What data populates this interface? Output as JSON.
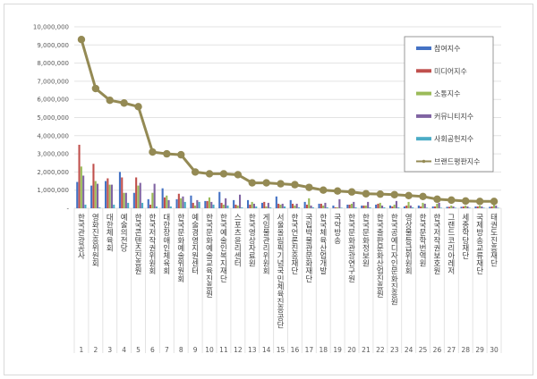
{
  "chart_data": {
    "type": "bar",
    "title": "",
    "xlabel": "",
    "ylabel": "",
    "ylim": [
      0,
      10000000
    ],
    "yticks": [
      "-",
      "1,000,000",
      "2,000,000",
      "3,000,000",
      "4,000,000",
      "5,000,000",
      "6,000,000",
      "7,000,000",
      "8,000,000",
      "9,000,000",
      "10,000,000"
    ],
    "grid": true,
    "legend_position": "top-right",
    "ranks": [
      "1",
      "2",
      "3",
      "4",
      "5",
      "6",
      "7",
      "8",
      "9",
      "10",
      "11",
      "12",
      "13",
      "14",
      "15",
      "16",
      "17",
      "18",
      "19",
      "20",
      "21",
      "22",
      "23",
      "24",
      "25",
      "26",
      "27",
      "28",
      "29",
      "30"
    ],
    "categories": [
      "한국관광공사",
      "영화진흥위원회",
      "대한체육회",
      "예술의전당",
      "한국콘텐츠진흥원",
      "한국저작권위원회",
      "대한장애인체육회",
      "한국문화예술위원회",
      "예술경영지원센터",
      "한국문화예술교육진흥원",
      "한국예술인복지재단",
      "스포츠윤리센터",
      "한국영상자료원",
      "게임물관리위원회",
      "서울올림픽기념국민체육진흥공단",
      "한국언론진흥재단",
      "국립박물관문화재단",
      "한국체육산업개발",
      "국악방송",
      "한국문화관광연구원",
      "한국문화정보원",
      "한국출판문화산업진흥원",
      "한국공예디자인문화진흥원",
      "영상물등급위원회",
      "한국문학번역원",
      "한국저작권보호원",
      "그랜드코리아레저",
      "세종학당재단",
      "국제방송교류재단",
      "태권도진흥재단"
    ],
    "series": [
      {
        "name": "참여지수",
        "type": "bar",
        "color": "#4472c4",
        "values": [
          1450000,
          1250000,
          1500000,
          2000000,
          850000,
          500000,
          1100000,
          500000,
          700000,
          400000,
          900000,
          450000,
          450000,
          300000,
          650000,
          450000,
          350000,
          250000,
          150000,
          200000,
          150000,
          200000,
          150000,
          100000,
          150000,
          100000,
          80000,
          80000,
          100000,
          80000
        ]
      },
      {
        "name": "미디어지수",
        "type": "bar",
        "color": "#c0504d",
        "values": [
          3500000,
          2450000,
          1650000,
          1700000,
          1700000,
          200000,
          600000,
          800000,
          300000,
          400000,
          300000,
          200000,
          200000,
          350000,
          250000,
          250000,
          200000,
          250000,
          50000,
          200000,
          150000,
          250000,
          100000,
          150000,
          100000,
          100000,
          80000,
          100000,
          100000,
          100000
        ]
      },
      {
        "name": "소통지수",
        "type": "bar",
        "color": "#9bbb59",
        "values": [
          2300000,
          1500000,
          1300000,
          850000,
          1250000,
          850000,
          700000,
          550000,
          150000,
          600000,
          200000,
          150000,
          350000,
          100000,
          200000,
          150000,
          550000,
          150000,
          50000,
          250000,
          150000,
          300000,
          200000,
          350000,
          300000,
          250000,
          150000,
          150000,
          150000,
          200000
        ]
      },
      {
        "name": "커뮤니티지수",
        "type": "bar",
        "color": "#8064a2",
        "values": [
          1800000,
          1350000,
          1300000,
          850000,
          1400000,
          1350000,
          450000,
          650000,
          450000,
          350000,
          550000,
          750000,
          250000,
          300000,
          250000,
          250000,
          150000,
          300000,
          500000,
          350000,
          350000,
          150000,
          400000,
          150000,
          250000,
          300000,
          100000,
          100000,
          100000,
          150000
        ]
      },
      {
        "name": "사회공헌지수",
        "type": "bar",
        "color": "#4bacc6",
        "values": [
          200000,
          50000,
          200000,
          300000,
          300000,
          100000,
          100000,
          350000,
          350000,
          200000,
          150000,
          50000,
          100000,
          50000,
          100000,
          50000,
          50000,
          50000,
          30000,
          50000,
          50000,
          50000,
          50000,
          50000,
          30000,
          30000,
          30000,
          30000,
          30000,
          30000
        ]
      },
      {
        "name": "브랜드평판지수",
        "type": "line",
        "color": "#948a54",
        "values": [
          9300000,
          6600000,
          5950000,
          5800000,
          5600000,
          3100000,
          3000000,
          2950000,
          2000000,
          1900000,
          1900000,
          1850000,
          1400000,
          1400000,
          1350000,
          1300000,
          1150000,
          1000000,
          950000,
          900000,
          800000,
          780000,
          750000,
          700000,
          650000,
          500000,
          450000,
          400000,
          380000,
          380000
        ]
      }
    ]
  }
}
